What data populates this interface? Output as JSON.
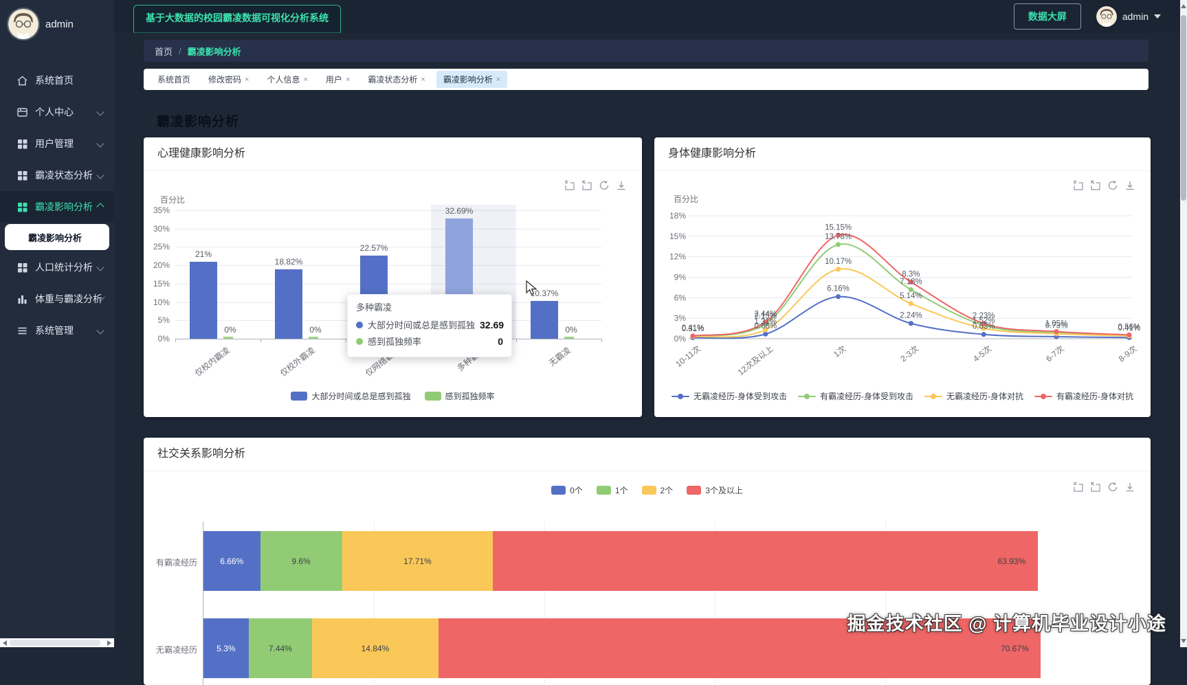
{
  "colors": {
    "accent": "#3be2ae",
    "palette": [
      "#5470c6",
      "#91cc75",
      "#fac858",
      "#ee6666"
    ],
    "hover_bar": "#8fa4dc"
  },
  "header": {
    "app_title": "基于大数据的校园霸凌数据可视化分析系统",
    "screen_button": "数据大屏",
    "user_name": "admin"
  },
  "sidebar": {
    "user_name": "admin",
    "items": [
      {
        "label": "系统首页",
        "icon": "home-icon",
        "chevron": null,
        "active": false
      },
      {
        "label": "个人中心",
        "icon": "panel-icon",
        "chevron": "down",
        "active": false
      },
      {
        "label": "用户管理",
        "icon": "grid-icon",
        "chevron": "down",
        "active": false
      },
      {
        "label": "霸凌状态分析",
        "icon": "grid-icon",
        "chevron": "down",
        "active": false
      },
      {
        "label": "霸凌影响分析",
        "icon": "grid-icon",
        "chevron": "up",
        "active": true,
        "children": [
          "霸凌影响分析"
        ]
      },
      {
        "label": "人口统计分析",
        "icon": "grid-icon",
        "chevron": "down",
        "active": false
      },
      {
        "label": "体重与霸凌分析",
        "icon": "chart-bar-icon",
        "chevron": "down",
        "active": false
      },
      {
        "label": "系统管理",
        "icon": "list-icon",
        "chevron": "down",
        "active": false
      }
    ]
  },
  "breadcrumb": {
    "home": "首页",
    "separator": "/",
    "current": "霸凌影响分析"
  },
  "tabs": {
    "close_glyph": "×",
    "items": [
      {
        "label": "系统首页",
        "closable": false,
        "active": false
      },
      {
        "label": "修改密码",
        "closable": true,
        "active": false
      },
      {
        "label": "个人信息",
        "closable": true,
        "active": false
      },
      {
        "label": "用户",
        "closable": true,
        "active": false
      },
      {
        "label": "霸凌状态分析",
        "closable": true,
        "active": false
      },
      {
        "label": "霸凌影响分析",
        "closable": true,
        "active": true
      }
    ]
  },
  "page_title": "霸凌影响分析",
  "toolbox_icons": [
    "data-zoom",
    "restore",
    "refresh",
    "save-image"
  ],
  "watermark": "掘金技术社区 @ 计算机毕业设计小途",
  "chart_data": [
    {
      "type": "bar",
      "title": "心理健康影响分析",
      "ylabel": "百分比",
      "ylim": [
        0,
        35
      ],
      "yticks": [
        "0%",
        "5%",
        "10%",
        "15%",
        "20%",
        "25%",
        "30%",
        "35%"
      ],
      "categories": [
        "仅校内霸凌",
        "仅校外霸凌",
        "仅网络霸凌",
        "多种霸凌",
        "无霸凌"
      ],
      "series": [
        {
          "name": "大部分时间或总是感到孤独",
          "color": "#5470c6",
          "values": [
            21,
            18.82,
            22.57,
            32.69,
            10.37
          ],
          "labels": [
            "21%",
            "18.82%",
            "22.57%",
            "32.69%",
            "10.37%"
          ]
        },
        {
          "name": "感到孤独频率",
          "color": "#91cc75",
          "values": [
            0,
            0,
            0,
            0,
            0
          ],
          "labels": [
            "0%",
            "0%",
            "0%",
            "0%",
            "0%"
          ]
        }
      ],
      "hover_category_index": 3,
      "tooltip": {
        "title": "多种霸凌",
        "rows": [
          {
            "name": "大部分时间或总是感到孤独",
            "value": "32.69",
            "color": "#5470c6"
          },
          {
            "name": "感到孤独频率",
            "value": "0",
            "color": "#91cc75"
          }
        ]
      }
    },
    {
      "type": "line",
      "title": "身体健康影响分析",
      "ylabel": "百分比",
      "ylim": [
        0,
        18
      ],
      "yticks": [
        "0%",
        "3%",
        "6%",
        "9%",
        "12%",
        "15%",
        "18%"
      ],
      "categories": [
        "10-11次",
        "12次及以上",
        "1次",
        "2-3次",
        "4-5次",
        "6-7次",
        "8-9次"
      ],
      "series": [
        {
          "name": "无霸凌经历-身体受到攻击",
          "color": "#5470c6",
          "values": [
            0.15,
            0.68,
            6.16,
            2.24,
            0.63,
            0.3,
            0.17
          ]
        },
        {
          "name": "有霸凌经历-身体受到攻击",
          "color": "#91cc75",
          "values": [
            0.35,
            2.15,
            13.78,
            7.18,
            1.97,
            0.85,
            0.45
          ]
        },
        {
          "name": "无霸凌经历-身体对抗",
          "color": "#fac858",
          "values": [
            0.31,
            1.31,
            10.17,
            5.14,
            1.52,
            0.73,
            0.41
          ]
        },
        {
          "name": "有霸凌经历-身体对抗",
          "color": "#ee6666",
          "values": [
            0.41,
            2.44,
            15.15,
            8.3,
            2.23,
            1.05,
            0.56
          ]
        }
      ],
      "point_labels": [
        {
          "s": 3,
          "x": 0,
          "t": "0.41%"
        },
        {
          "s": 2,
          "x": 0,
          "t": "0.31%"
        },
        {
          "s": 3,
          "x": 1,
          "t": "2.44%"
        },
        {
          "s": 1,
          "x": 1,
          "t": "2.15%"
        },
        {
          "s": 2,
          "x": 1,
          "t": "1.31%"
        },
        {
          "s": 0,
          "x": 1,
          "t": "0.68%"
        },
        {
          "s": 3,
          "x": 2,
          "t": "15.15%"
        },
        {
          "s": 1,
          "x": 2,
          "t": "13.78%"
        },
        {
          "s": 2,
          "x": 2,
          "t": "10.17%"
        },
        {
          "s": 0,
          "x": 2,
          "t": "6.16%"
        },
        {
          "s": 3,
          "x": 3,
          "t": "8.3%"
        },
        {
          "s": 1,
          "x": 3,
          "t": "7.18%"
        },
        {
          "s": 2,
          "x": 3,
          "t": "5.14%"
        },
        {
          "s": 0,
          "x": 3,
          "t": "2.24%"
        },
        {
          "s": 3,
          "x": 4,
          "t": "2.23%"
        },
        {
          "s": 2,
          "x": 4,
          "t": "1.52%"
        },
        {
          "s": 0,
          "x": 4,
          "t": "0.63%"
        },
        {
          "s": 3,
          "x": 5,
          "t": "1.05%"
        },
        {
          "s": 2,
          "x": 5,
          "t": "0.73%"
        },
        {
          "s": 3,
          "x": 6,
          "t": "0.56%"
        },
        {
          "s": 2,
          "x": 6,
          "t": "0.41%"
        }
      ]
    },
    {
      "type": "stacked-bar-horizontal",
      "title": "社交关系影响分析",
      "categories": [
        "有霸凌经历",
        "无霸凌经历"
      ],
      "series": [
        {
          "name": "0个",
          "color": "#5470c6",
          "values": [
            6.66,
            5.3
          ],
          "labels": [
            "6.66%",
            "5.3%"
          ]
        },
        {
          "name": "1个",
          "color": "#91cc75",
          "values": [
            9.6,
            7.44
          ],
          "labels": [
            "9.6%",
            "7.44%"
          ]
        },
        {
          "name": "2个",
          "color": "#fac858",
          "values": [
            17.71,
            14.84
          ],
          "labels": [
            "17.71%",
            "14.84%"
          ]
        },
        {
          "name": "3个及以上",
          "color": "#ee6666",
          "values": [
            63.93,
            70.67
          ],
          "labels": [
            "63.93%",
            "70.67%"
          ]
        }
      ],
      "xlim": [
        0,
        100
      ]
    }
  ]
}
